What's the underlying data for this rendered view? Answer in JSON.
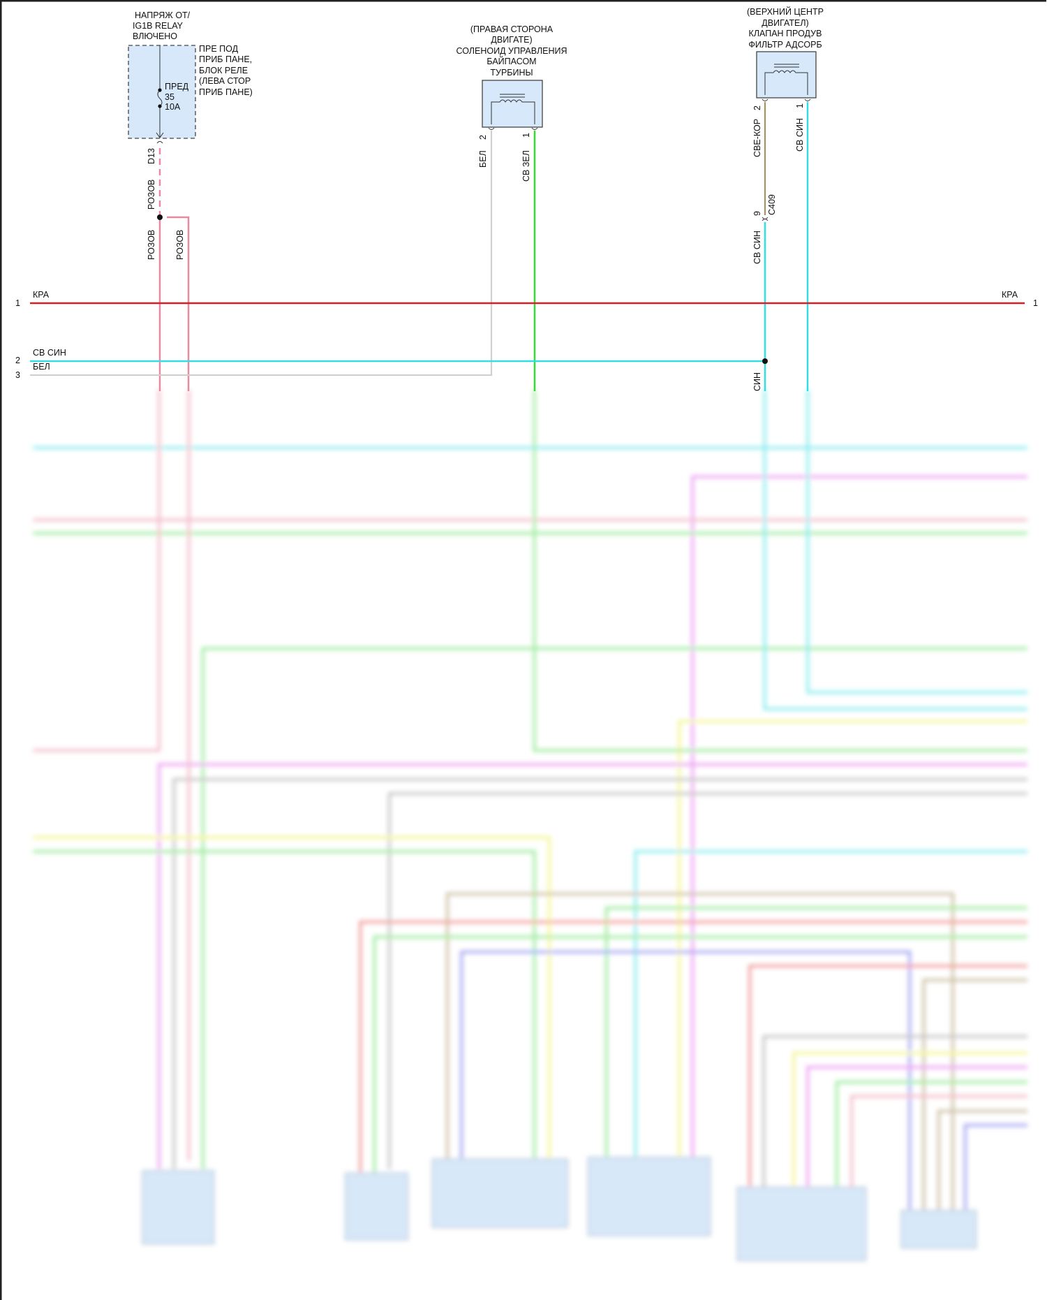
{
  "fuse_block": {
    "title_lines": [
      "НАПРЯЖ ОТ/",
      "IG1B RELAY",
      "ВЛЮЧЕНО"
    ],
    "location_lines": [
      "ПРЕ ПОД",
      "ПРИБ ПАНЕ,",
      "БЛОК РЕЛЕ",
      "(ЛЕВА СТОР",
      "ПРИБ ПАНЕ)"
    ],
    "fuse_lines": [
      "ПРЕД",
      "35",
      "10A"
    ],
    "connector": "D13",
    "wire_top": "РОЗОВ",
    "wire_left": "РОЗОВ",
    "wire_right": "РОЗОВ"
  },
  "solenoid": {
    "title_lines": [
      "(ПРАВАЯ СТОРОНА",
      "ДВИГАТЕ)",
      "СОЛЕНОИД УПРАВЛЕНИЯ",
      "БАЙПАСОМ",
      "ТУРБИНЫ"
    ],
    "pin2": "2",
    "pin2_wire": "БЕЛ",
    "pin1": "1",
    "pin1_wire": "СВ ЗЕЛ"
  },
  "purge_valve": {
    "title_lines": [
      "(ВЕРХНИЙ ЦЕНТР",
      "ДВИГАТЕЛ)",
      "КЛАПАН ПРОДУВ",
      "ФИЛЬТР АДСОРБ"
    ],
    "pin2": "2",
    "pin2_wire": "СВЕ-КОР",
    "pin1": "1",
    "pin1_wire": "СВ СИН",
    "inline_pin": "9",
    "inline_connector": "C409",
    "lower_wire": "СВ СИН",
    "splice_wire": "СИН"
  },
  "buses": [
    {
      "num": "1",
      "label": "КРА",
      "right_label": "КРА",
      "right_num": "1",
      "color": "#d42027"
    },
    {
      "num": "2",
      "label": "СВ СИН",
      "color": "#33dde0"
    },
    {
      "num": "3",
      "label": "БЕЛ",
      "color": "#cfcfcf"
    }
  ],
  "colors": {
    "pink": "#e88aa0",
    "green": "#33dd33",
    "cyan": "#33dde0",
    "tan": "#a89060",
    "white_wire": "#d0d0d0",
    "component_fill": "#d6e8fa"
  }
}
